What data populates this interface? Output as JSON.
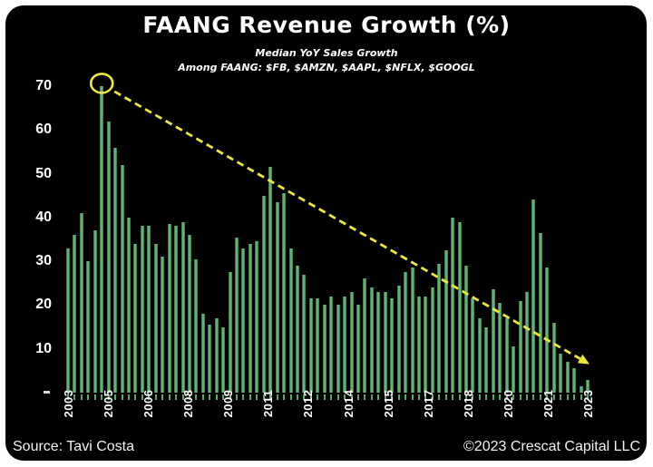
{
  "header": {
    "title": "FAANG Revenue Growth (%)",
    "subtitle_line1": "Median YoY Sales Growth",
    "subtitle_line2": "Among FAANG: $FB, $AMZN, $AAPL, $NFLX, $GOOGL"
  },
  "footer": {
    "source": "Source: Tavi Costa",
    "copyright": "©2023 Crescat Capital LLC"
  },
  "colors": {
    "background": "#ffffff",
    "panel": "#000000",
    "bar_green_edge": "#2b6b3b",
    "bar_green_center": "#7cc88a",
    "tick_green": "#57a967",
    "annotation_yellow": "#ede93c",
    "text_white": "#ffffff"
  },
  "chart_data": {
    "type": "bar",
    "title": "FAANG Revenue Growth (%)",
    "subtitle": "Median YoY Sales Growth Among FAANG: $FB, $AMZN, $AAPL, $NFLX, $GOOGL",
    "frequency": "quarterly",
    "xlabel": "",
    "ylabel": "",
    "ylim": [
      0,
      75
    ],
    "yticks": [
      70,
      60,
      50,
      40,
      30,
      20,
      10
    ],
    "zero_tick_label": "-",
    "grid": false,
    "legend": null,
    "x_tick_labels": [
      "2003",
      "2005",
      "2006",
      "2008",
      "2009",
      "2011",
      "2012",
      "2014",
      "2015",
      "2017",
      "2018",
      "2020",
      "2021",
      "2023"
    ],
    "values": [
      33,
      36,
      41,
      30,
      37,
      70,
      62,
      56,
      52,
      40,
      34,
      38,
      38,
      34,
      31,
      38.5,
      38,
      39,
      36,
      30.5,
      18,
      15.5,
      17,
      15,
      27.5,
      35.5,
      33,
      34,
      34.5,
      45,
      51.5,
      43.5,
      45.5,
      33,
      29,
      27,
      21.5,
      21.5,
      20,
      22,
      20,
      22,
      23,
      20,
      26,
      24,
      23,
      23,
      21.5,
      24.5,
      27.5,
      28.5,
      22,
      22,
      24,
      29.5,
      32.5,
      40,
      39,
      29,
      21.5,
      17,
      15,
      23.5,
      20.5,
      17,
      10.5,
      21,
      23,
      44,
      36.5,
      28.5,
      16,
      9,
      7,
      5.5,
      1.5,
      3
    ],
    "annotations": {
      "peak_circle": {
        "shape": "ellipse",
        "at_value": 70,
        "note": "yellow circle around 2004 peak bar"
      },
      "trendline": {
        "style": "dashed-arrow",
        "color": "#ede93c",
        "from_value": 70,
        "to_value": 6,
        "direction": "declining left-to-right"
      }
    }
  }
}
